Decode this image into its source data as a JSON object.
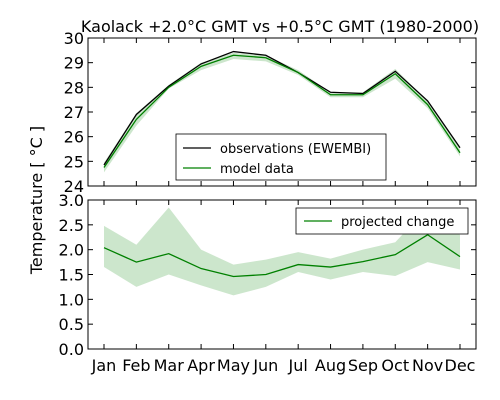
{
  "chart_data": {
    "title": "Kaolack +2.0°C GMT vs +0.5°C GMT (1980-2000)",
    "ylabel": "Temperature [$^\\circ C$]",
    "ylabel_display": "Temperature [ °C ]",
    "categories": [
      "Jan",
      "Feb",
      "Mar",
      "Apr",
      "May",
      "Jun",
      "Jul",
      "Aug",
      "Sep",
      "Oct",
      "Nov",
      "Dec"
    ],
    "panels": [
      {
        "type": "line",
        "ylim": [
          24,
          30
        ],
        "yticks": [
          "24",
          "25",
          "26",
          "27",
          "28",
          "29",
          "30"
        ],
        "legend_position": "lower-center",
        "series": [
          {
            "name": "observations (EWEMBI)",
            "color": "#000000",
            "values": [
              24.85,
              26.9,
              28.05,
              28.95,
              29.45,
              29.3,
              28.6,
              27.8,
              27.75,
              28.65,
              27.45,
              25.55
            ]
          },
          {
            "name": "model data",
            "color": "#008000",
            "values": [
              24.75,
              26.7,
              28.0,
              28.85,
              29.3,
              29.2,
              28.6,
              27.7,
              27.7,
              28.55,
              27.3,
              25.35
            ],
            "band_low": [
              24.55,
              26.45,
              27.95,
              28.7,
              29.15,
              29.05,
              28.5,
              27.6,
              27.6,
              28.35,
              27.15,
              25.2
            ],
            "band_high": [
              24.95,
              26.95,
              28.1,
              29.0,
              29.4,
              29.3,
              28.7,
              27.8,
              27.8,
              28.75,
              27.45,
              25.5
            ]
          }
        ]
      },
      {
        "type": "line",
        "ylim": [
          0,
          3
        ],
        "yticks": [
          "0.0",
          "0.5",
          "1.0",
          "1.5",
          "2.0",
          "2.5",
          "3.0"
        ],
        "legend_position": "top-right",
        "series": [
          {
            "name": "projected change",
            "color": "#008000",
            "values": [
              2.04,
              1.75,
              1.92,
              1.62,
              1.46,
              1.5,
              1.7,
              1.65,
              1.76,
              1.9,
              2.3,
              1.86
            ],
            "band_low": [
              1.65,
              1.25,
              1.5,
              1.28,
              1.08,
              1.25,
              1.55,
              1.4,
              1.55,
              1.47,
              1.75,
              1.6
            ],
            "band_high": [
              2.48,
              2.1,
              2.85,
              2.0,
              1.7,
              1.8,
              1.95,
              1.82,
              2.0,
              2.15,
              2.85,
              2.3
            ]
          }
        ]
      }
    ]
  }
}
